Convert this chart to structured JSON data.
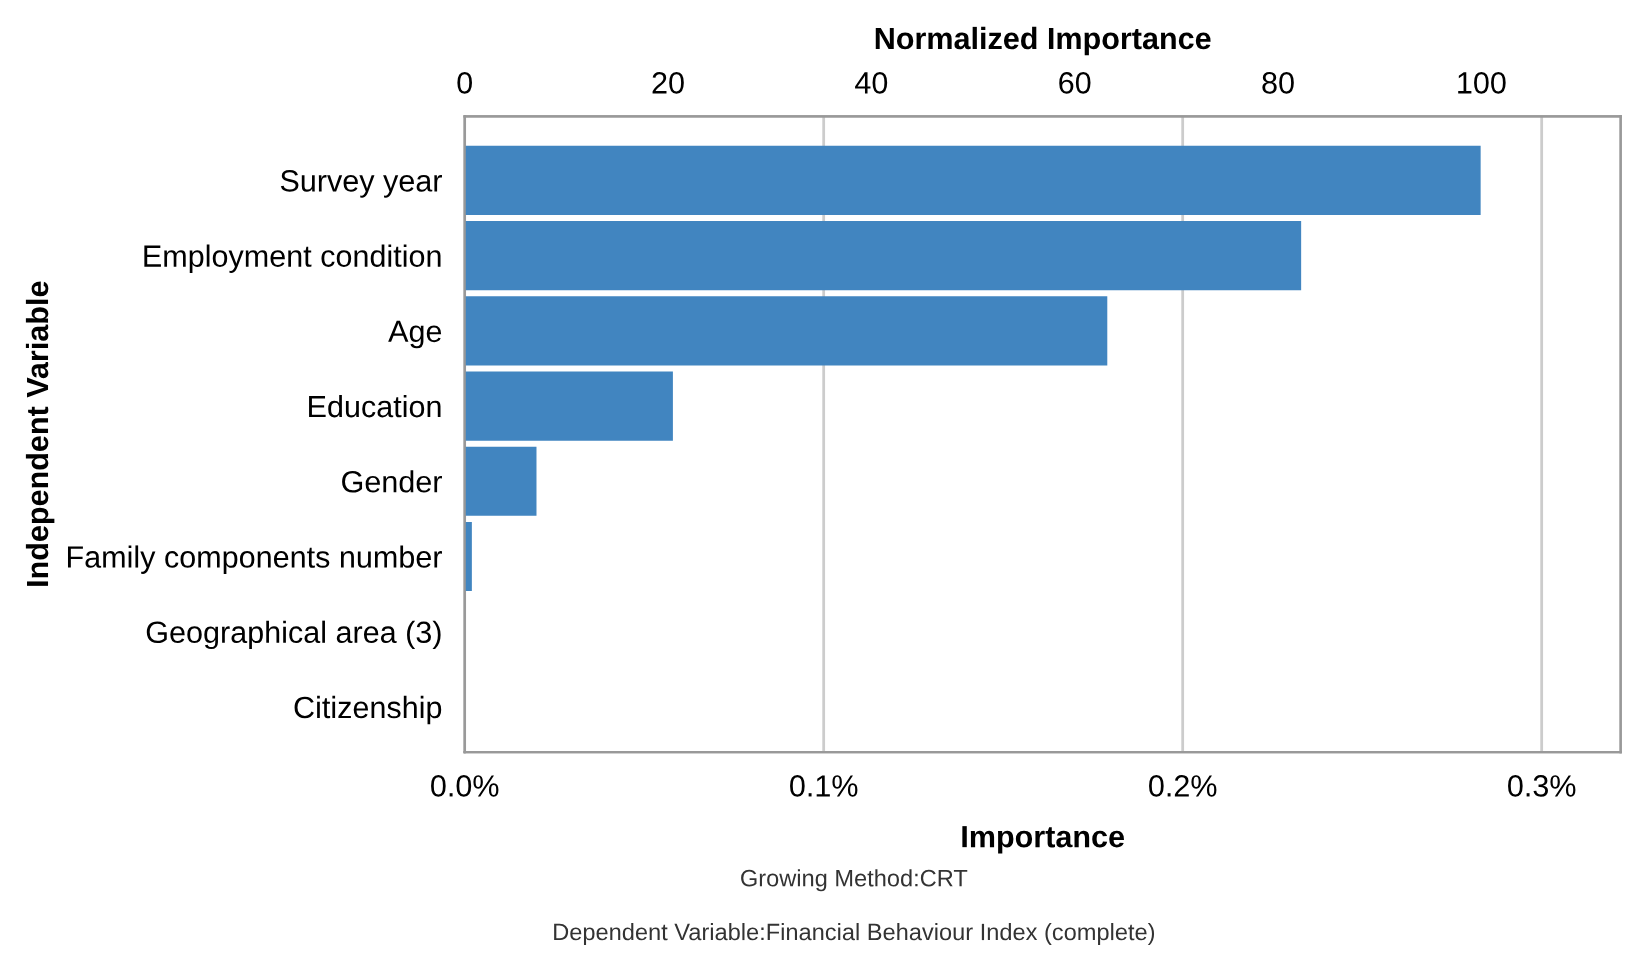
{
  "chart_data": {
    "type": "bar",
    "orientation": "horizontal",
    "xlabel": "Importance",
    "x2label": "Normalized Importance",
    "ylabel": "Independent Variable",
    "categories": [
      "Survey year",
      "Employment condition",
      "Age",
      "Education",
      "Gender",
      "Family components number",
      "Geographical area (3)",
      "Citizenship"
    ],
    "values": [
      0.283,
      0.233,
      0.179,
      0.058,
      0.02,
      0.002,
      0,
      0
    ],
    "color": "#4185c0",
    "xlim": [
      0,
      0.322
    ],
    "xticks": [
      {
        "value": 0,
        "label": "0.0%"
      },
      {
        "value": 0.1,
        "label": "0.1%"
      },
      {
        "value": 0.2,
        "label": "0.2%"
      },
      {
        "value": 0.3,
        "label": "0.3%"
      }
    ],
    "x2lim": [
      0,
      113.7
    ],
    "x2ticks": [
      0,
      20,
      40,
      60,
      80,
      100
    ],
    "grid": "x",
    "legend": false,
    "annotations": [
      "Growing Method:CRT",
      "Dependent Variable:Financial Behaviour Index (complete)"
    ]
  }
}
